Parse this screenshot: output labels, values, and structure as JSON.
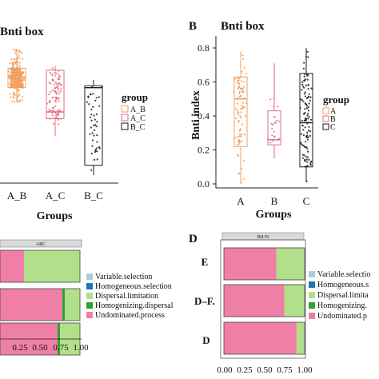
{
  "colors": {
    "AB": "#f0a060",
    "AC": "#e36b85",
    "BC": "#1a1a1a",
    "A": "#f0a060",
    "B": "#e36b85",
    "C": "#1a1a1a",
    "variable_selection": "#a6cee3",
    "homogeneous_selection": "#1f78b4",
    "dispersal_limitation": "#b2df8a",
    "homogenizing_dispersal": "#33a02c",
    "undominated_process": "#f07fa8",
    "strip_fill": "#d9d9d9"
  },
  "panelA": {
    "title": "Bnti box",
    "xlabel": "Groups",
    "legend_title": "group",
    "legend_items": [
      "A_B",
      "A_C",
      "B_C"
    ],
    "tick_labels": [
      "A_B",
      "A_C",
      "B_C"
    ]
  },
  "panelB": {
    "letter": "B",
    "title": "Bnti box",
    "xlabel": "Groups",
    "ylabel": "Bnti index",
    "legend_title": "group",
    "legend_items": [
      "A",
      "B",
      "C"
    ],
    "tick_labels": [
      "A",
      "B",
      "C"
    ],
    "yticks": [
      "0.0",
      "0.2",
      "0.4",
      "0.6",
      "0.8"
    ]
  },
  "panelC": {
    "strip": "ABC",
    "xticks": [
      "0.25",
      "0.50",
      "0.75",
      "1.00"
    ],
    "legend": [
      "Variable.selection",
      "Homogeneous.selection",
      "Dispersal.limitation",
      "Homogenizing.dispersal",
      "Undominated.process"
    ]
  },
  "panelD": {
    "letter": "D",
    "strip": "BIUN",
    "row_labels": [
      "E",
      "D–F.",
      "D"
    ],
    "xticks": [
      "0.00",
      "0.25",
      "0.50",
      "0.75",
      "1.00"
    ],
    "legend": [
      "Variable.selectio",
      "Homogeneous.s",
      "Dispersal.limita",
      "Homogenizing.",
      "Undominated.p"
    ]
  },
  "chart_data": [
    {
      "type": "box",
      "panel": "A",
      "title": "Bnti box",
      "xlabel": "Groups",
      "categories": [
        "A_B",
        "A_C",
        "B_C"
      ],
      "boxes": [
        {
          "name": "A_B",
          "q1": 0.6,
          "median": 0.7,
          "q3": 0.8,
          "lo": 0.45,
          "hi": 1.0
        },
        {
          "name": "A_C",
          "q1": 0.28,
          "median": 0.35,
          "q3": 0.78,
          "lo": 0.1,
          "hi": 0.82
        },
        {
          "name": "B_C",
          "q1": -0.2,
          "median": 0.6,
          "q3": 0.62,
          "lo": -0.3,
          "hi": 0.68
        }
      ]
    },
    {
      "type": "box",
      "panel": "B",
      "title": "Bnti box",
      "xlabel": "Groups",
      "ylabel": "Bnti index",
      "categories": [
        "A",
        "B",
        "C"
      ],
      "ylim": [
        0,
        0.82
      ],
      "boxes": [
        {
          "name": "A",
          "q1": 0.22,
          "median": 0.5,
          "q3": 0.63,
          "lo": 0.0,
          "hi": 0.78
        },
        {
          "name": "B",
          "q1": 0.23,
          "median": 0.26,
          "q3": 0.43,
          "lo": 0.15,
          "hi": 0.71
        },
        {
          "name": "C",
          "q1": 0.1,
          "median": 0.36,
          "q3": 0.65,
          "lo": 0.01,
          "hi": 0.8
        }
      ]
    },
    {
      "type": "stacked-bar",
      "panel": "C",
      "strip": "ABC",
      "xlim": [
        0,
        1
      ],
      "series_order": [
        "undominated_process",
        "homogenizing_dispersal",
        "dispersal_limitation"
      ],
      "rows": [
        {
          "undominated_process": 0.3,
          "homogenizing_dispersal": 0.0,
          "dispersal_limitation": 0.7
        },
        {
          "undominated_process": 0.78,
          "homogenizing_dispersal": 0.03,
          "dispersal_limitation": 0.19
        },
        {
          "undominated_process": 0.72,
          "homogenizing_dispersal": 0.03,
          "dispersal_limitation": 0.25
        }
      ]
    },
    {
      "type": "stacked-bar",
      "panel": "D",
      "strip": "BIUN",
      "xlim": [
        0,
        1
      ],
      "categories": [
        "E",
        "D–F.",
        "D"
      ],
      "series_order": [
        "undominated_process",
        "dispersal_limitation"
      ],
      "rows": [
        {
          "undominated_process": 0.65,
          "dispersal_limitation": 0.35
        },
        {
          "undominated_process": 0.75,
          "dispersal_limitation": 0.25
        },
        {
          "undominated_process": 0.9,
          "dispersal_limitation": 0.1
        }
      ]
    }
  ]
}
